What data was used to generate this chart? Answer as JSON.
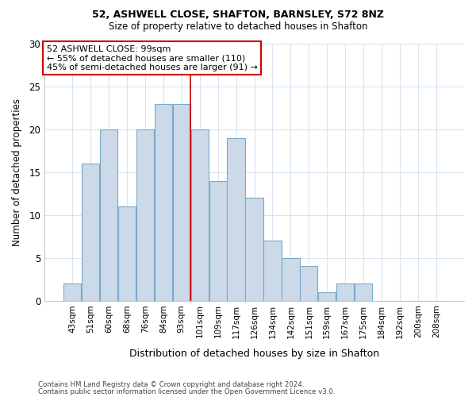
{
  "title1": "52, ASHWELL CLOSE, SHAFTON, BARNSLEY, S72 8NZ",
  "title2": "Size of property relative to detached houses in Shafton",
  "xlabel": "Distribution of detached houses by size in Shafton",
  "ylabel": "Number of detached properties",
  "categories": [
    "43sqm",
    "51sqm",
    "60sqm",
    "68sqm",
    "76sqm",
    "84sqm",
    "93sqm",
    "101sqm",
    "109sqm",
    "117sqm",
    "126sqm",
    "134sqm",
    "142sqm",
    "151sqm",
    "159sqm",
    "167sqm",
    "175sqm",
    "184sqm",
    "192sqm",
    "200sqm",
    "208sqm"
  ],
  "values": [
    2,
    16,
    20,
    11,
    20,
    23,
    23,
    20,
    14,
    19,
    12,
    7,
    5,
    4,
    1,
    2,
    2,
    0,
    0,
    0,
    0
  ],
  "bar_color": "#ccd9e8",
  "bar_edge_color": "#7aaac8",
  "vline_x": 7.0,
  "vline_color": "#cc0000",
  "annotation_text": "52 ASHWELL CLOSE: 99sqm\n← 55% of detached houses are smaller (110)\n45% of semi-detached houses are larger (91) →",
  "annotation_box_color": "#ffffff",
  "annotation_box_edge_color": "#cc0000",
  "ylim": [
    0,
    30
  ],
  "yticks": [
    0,
    5,
    10,
    15,
    20,
    25,
    30
  ],
  "footer1": "Contains HM Land Registry data © Crown copyright and database right 2024.",
  "footer2": "Contains public sector information licensed under the Open Government Licence v3.0.",
  "background_color": "#ffffff",
  "plot_bg_color": "#ffffff",
  "grid_color": "#d8e4f0"
}
